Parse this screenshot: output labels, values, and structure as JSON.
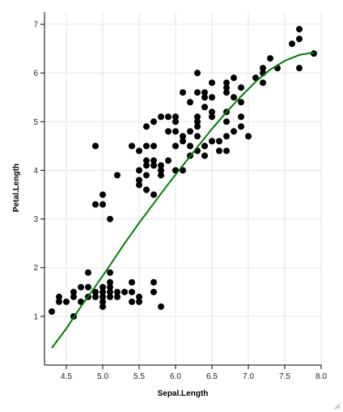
{
  "chart_data": {
    "type": "scatter",
    "title": "",
    "xlabel": "Sepal.Length",
    "ylabel": "Petal.Length",
    "xlim": [
      4.2,
      8.0
    ],
    "ylim": [
      0,
      7.25
    ],
    "x_ticks": [
      "4.5",
      "5.0",
      "5.5",
      "6.0",
      "6.5",
      "7.0",
      "7.5",
      "8.0"
    ],
    "y_ticks": [
      "1",
      "2",
      "3",
      "4",
      "5",
      "6",
      "7"
    ],
    "grid": true,
    "point_color": "#000000",
    "points": [
      [
        4.3,
        1.1
      ],
      [
        4.4,
        1.4
      ],
      [
        4.4,
        1.3
      ],
      [
        4.5,
        1.3
      ],
      [
        4.6,
        1.0
      ],
      [
        4.6,
        1.4
      ],
      [
        4.6,
        1.5
      ],
      [
        4.7,
        1.3
      ],
      [
        4.7,
        1.6
      ],
      [
        4.8,
        1.4
      ],
      [
        4.8,
        1.6
      ],
      [
        4.8,
        1.9
      ],
      [
        4.9,
        1.4
      ],
      [
        4.9,
        1.5
      ],
      [
        5.0,
        1.2
      ],
      [
        5.0,
        1.3
      ],
      [
        5.0,
        1.4
      ],
      [
        5.0,
        1.5
      ],
      [
        5.0,
        1.6
      ],
      [
        5.1,
        1.4
      ],
      [
        5.1,
        1.5
      ],
      [
        5.1,
        1.7
      ],
      [
        5.1,
        1.9
      ],
      [
        5.1,
        1.6
      ],
      [
        5.2,
        1.4
      ],
      [
        5.2,
        1.5
      ],
      [
        5.3,
        1.5
      ],
      [
        5.4,
        1.3
      ],
      [
        5.4,
        1.5
      ],
      [
        5.4,
        1.7
      ],
      [
        5.5,
        1.3
      ],
      [
        5.5,
        1.4
      ],
      [
        5.7,
        1.5
      ],
      [
        5.7,
        1.7
      ],
      [
        5.8,
        1.2
      ],
      [
        4.9,
        3.3
      ],
      [
        4.9,
        4.5
      ],
      [
        5.0,
        3.3
      ],
      [
        5.0,
        3.5
      ],
      [
        5.1,
        3.0
      ],
      [
        5.2,
        3.9
      ],
      [
        5.4,
        4.5
      ],
      [
        5.5,
        3.7
      ],
      [
        5.5,
        3.8
      ],
      [
        5.5,
        4.0
      ],
      [
        5.5,
        4.4
      ],
      [
        5.6,
        3.6
      ],
      [
        5.6,
        3.9
      ],
      [
        5.6,
        4.1
      ],
      [
        5.6,
        4.2
      ],
      [
        5.6,
        4.5
      ],
      [
        5.6,
        4.9
      ],
      [
        5.7,
        3.5
      ],
      [
        5.7,
        4.1
      ],
      [
        5.7,
        4.2
      ],
      [
        5.7,
        4.5
      ],
      [
        5.7,
        5.0
      ],
      [
        5.8,
        3.9
      ],
      [
        5.8,
        4.0
      ],
      [
        5.8,
        4.1
      ],
      [
        5.8,
        5.1
      ],
      [
        5.9,
        4.2
      ],
      [
        5.9,
        4.8
      ],
      [
        5.9,
        5.1
      ],
      [
        6.0,
        4.0
      ],
      [
        6.0,
        4.5
      ],
      [
        6.0,
        4.8
      ],
      [
        6.0,
        5.0
      ],
      [
        6.0,
        5.1
      ],
      [
        6.1,
        4.0
      ],
      [
        6.1,
        4.6
      ],
      [
        6.1,
        4.7
      ],
      [
        6.1,
        5.6
      ],
      [
        6.2,
        4.3
      ],
      [
        6.2,
        4.5
      ],
      [
        6.2,
        4.8
      ],
      [
        6.2,
        5.4
      ],
      [
        6.3,
        4.4
      ],
      [
        6.3,
        4.7
      ],
      [
        6.3,
        4.9
      ],
      [
        6.3,
        5.0
      ],
      [
        6.3,
        5.1
      ],
      [
        6.3,
        5.6
      ],
      [
        6.3,
        6.0
      ],
      [
        6.4,
        4.3
      ],
      [
        6.4,
        4.5
      ],
      [
        6.4,
        5.3
      ],
      [
        6.4,
        5.5
      ],
      [
        6.4,
        5.6
      ],
      [
        6.5,
        4.6
      ],
      [
        6.5,
        5.1
      ],
      [
        6.5,
        5.2
      ],
      [
        6.5,
        5.5
      ],
      [
        6.5,
        5.8
      ],
      [
        6.6,
        4.4
      ],
      [
        6.6,
        4.6
      ],
      [
        6.7,
        4.4
      ],
      [
        6.7,
        4.7
      ],
      [
        6.7,
        5.0
      ],
      [
        6.7,
        5.2
      ],
      [
        6.7,
        5.6
      ],
      [
        6.7,
        5.7
      ],
      [
        6.7,
        5.8
      ],
      [
        6.8,
        4.8
      ],
      [
        6.8,
        5.5
      ],
      [
        6.8,
        5.9
      ],
      [
        6.9,
        4.9
      ],
      [
        6.9,
        5.1
      ],
      [
        6.9,
        5.4
      ],
      [
        6.9,
        5.7
      ],
      [
        7.0,
        4.7
      ],
      [
        7.1,
        5.9
      ],
      [
        7.2,
        5.8
      ],
      [
        7.2,
        6.0
      ],
      [
        7.2,
        6.1
      ],
      [
        7.3,
        6.3
      ],
      [
        7.4,
        6.1
      ],
      [
        7.6,
        6.6
      ],
      [
        7.7,
        6.1
      ],
      [
        7.7,
        6.7
      ],
      [
        7.7,
        6.9
      ],
      [
        7.9,
        6.4
      ]
    ],
    "fit_line": {
      "type": "line",
      "color": "#007f00",
      "x": [
        4.3,
        4.5,
        4.7,
        4.9,
        5.1,
        5.3,
        5.5,
        5.7,
        5.9,
        6.1,
        6.3,
        6.5,
        6.7,
        6.9,
        7.1,
        7.3,
        7.5,
        7.7,
        7.9
      ],
      "y": [
        0.35,
        0.75,
        1.2,
        1.62,
        2.05,
        2.5,
        2.92,
        3.32,
        3.72,
        4.1,
        4.48,
        4.85,
        5.2,
        5.52,
        5.82,
        6.07,
        6.25,
        6.37,
        6.42
      ]
    }
  }
}
